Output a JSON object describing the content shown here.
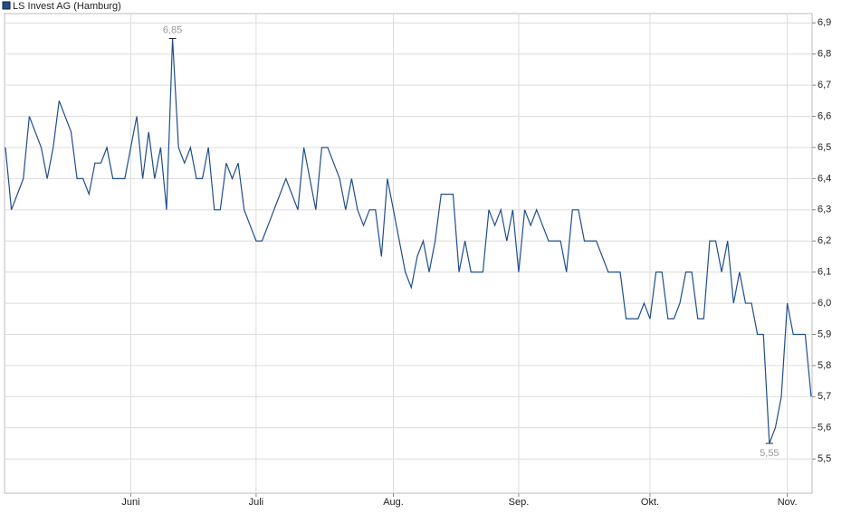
{
  "chart_data": {
    "type": "line",
    "series": [
      {
        "name": "LS Invest AG (Hamburg)",
        "color": "#1f4e8c",
        "values": [
          6.5,
          6.3,
          6.35,
          6.4,
          6.6,
          6.55,
          6.5,
          6.4,
          6.5,
          6.65,
          6.6,
          6.55,
          6.4,
          6.4,
          6.35,
          6.45,
          6.45,
          6.5,
          6.4,
          6.4,
          6.4,
          6.5,
          6.6,
          6.4,
          6.55,
          6.4,
          6.5,
          6.3,
          6.85,
          6.5,
          6.45,
          6.5,
          6.4,
          6.4,
          6.5,
          6.3,
          6.3,
          6.45,
          6.4,
          6.45,
          6.3,
          6.25,
          6.2,
          6.2,
          6.25,
          6.3,
          6.35,
          6.4,
          6.35,
          6.3,
          6.5,
          6.4,
          6.3,
          6.5,
          6.5,
          6.45,
          6.4,
          6.3,
          6.4,
          6.3,
          6.25,
          6.3,
          6.3,
          6.15,
          6.4,
          6.3,
          6.2,
          6.1,
          6.05,
          6.15,
          6.2,
          6.1,
          6.2,
          6.35,
          6.35,
          6.35,
          6.1,
          6.2,
          6.1,
          6.1,
          6.1,
          6.3,
          6.25,
          6.3,
          6.2,
          6.3,
          6.1,
          6.3,
          6.25,
          6.3,
          6.25,
          6.2,
          6.2,
          6.2,
          6.1,
          6.3,
          6.3,
          6.2,
          6.2,
          6.2,
          6.15,
          6.1,
          6.1,
          6.1,
          5.95,
          5.95,
          5.95,
          6.0,
          5.95,
          6.1,
          6.1,
          5.95,
          5.95,
          6.0,
          6.1,
          6.1,
          5.95,
          5.95,
          6.2,
          6.2,
          6.1,
          6.2,
          6.0,
          6.1,
          6.0,
          6.0,
          5.9,
          5.9,
          5.55,
          5.6,
          5.7,
          6.0,
          5.9,
          5.9,
          5.9,
          5.7
        ],
        "value_labels": [
          null,
          null,
          null,
          null,
          null,
          null,
          null,
          null,
          null,
          null,
          null,
          null,
          null,
          null,
          null,
          null,
          null,
          null,
          null,
          null,
          null,
          null,
          null,
          null,
          null,
          null,
          null,
          null,
          "6,85",
          null,
          null,
          null,
          null,
          null,
          null,
          null,
          null,
          null,
          null,
          null,
          null,
          null,
          null,
          null,
          null,
          null,
          null,
          null,
          null,
          null,
          null,
          null,
          null,
          null,
          null,
          null,
          null,
          null,
          null,
          null,
          null,
          null,
          null,
          null,
          null,
          null,
          null,
          null,
          null,
          null,
          null,
          null,
          null,
          null,
          null,
          null,
          null,
          null,
          null,
          null,
          null,
          null,
          null,
          null,
          null,
          null,
          null,
          null,
          null,
          null,
          null,
          null,
          null,
          null,
          null,
          null,
          null,
          null,
          null,
          null,
          null,
          null,
          null,
          null,
          null,
          null,
          null,
          null,
          null,
          null,
          null,
          null,
          null,
          null,
          null,
          null,
          null,
          null,
          null,
          null,
          null,
          null,
          null,
          null,
          null,
          null,
          null,
          null,
          "5,55",
          null,
          null,
          null,
          null,
          null,
          null,
          null
        ]
      }
    ],
    "categories": [
      null,
      null,
      null,
      null,
      null,
      null,
      null,
      null,
      null,
      null,
      null,
      null,
      null,
      null,
      null,
      null,
      null,
      null,
      null,
      null,
      null,
      "Juni",
      null,
      null,
      null,
      null,
      null,
      null,
      null,
      null,
      null,
      null,
      null,
      null,
      null,
      null,
      null,
      null,
      null,
      null,
      null,
      null,
      "Juli",
      null,
      null,
      null,
      null,
      null,
      null,
      null,
      null,
      null,
      null,
      null,
      null,
      null,
      null,
      null,
      null,
      null,
      null,
      null,
      null,
      null,
      null,
      "Aug.",
      null,
      null,
      null,
      null,
      null,
      null,
      null,
      null,
      null,
      null,
      null,
      null,
      null,
      null,
      null,
      null,
      null,
      null,
      null,
      null,
      "Sep.",
      null,
      null,
      null,
      null,
      null,
      null,
      null,
      null,
      null,
      null,
      null,
      null,
      null,
      null,
      null,
      null,
      null,
      null,
      null,
      null,
      null,
      "Okt.",
      null,
      null,
      null,
      null,
      null,
      null,
      null,
      null,
      null,
      null,
      null,
      null,
      null,
      null,
      null,
      null,
      null,
      null,
      null,
      null,
      null,
      null,
      "Nov.",
      null,
      null,
      null,
      null
    ],
    "ylim": [
      5.39,
      6.93
    ],
    "yticks": [
      {
        "value": 5.5,
        "label": "5,5"
      },
      {
        "value": 5.6,
        "label": "5,6"
      },
      {
        "value": 5.7,
        "label": "5,7"
      },
      {
        "value": 5.8,
        "label": "5,8"
      },
      {
        "value": 5.9,
        "label": "5,9"
      },
      {
        "value": 6.0,
        "label": "6,0"
      },
      {
        "value": 6.1,
        "label": "6,1"
      },
      {
        "value": 6.2,
        "label": "6,2"
      },
      {
        "value": 6.3,
        "label": "6,3"
      },
      {
        "value": 6.4,
        "label": "6,4"
      },
      {
        "value": 6.5,
        "label": "6,5"
      },
      {
        "value": 6.6,
        "label": "6,6"
      },
      {
        "value": 6.7,
        "label": "6,7"
      },
      {
        "value": 6.8,
        "label": "6,8"
      },
      {
        "value": 6.9,
        "label": "6,9"
      }
    ],
    "grid": true,
    "legend": "top-left"
  }
}
